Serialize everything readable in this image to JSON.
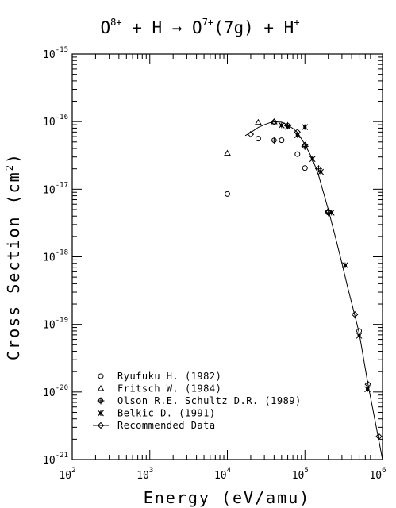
{
  "chart_data": {
    "type": "scatter",
    "title": {
      "part1": "O",
      "sup1": "8+",
      "part2": " + H → O",
      "sup2": "7+",
      "part3": "(7g) + H",
      "sup3": "+"
    },
    "xlabel": "Energy (eV/amu)",
    "ylabel": {
      "main": "Cross Section (cm",
      "sup": "2",
      "close": ")"
    },
    "x_scale": "log",
    "y_scale": "log",
    "xlim": [
      100,
      1000000
    ],
    "ylim": [
      1e-21,
      1e-15
    ],
    "x_ticks": [
      {
        "value": 100,
        "base": "10",
        "exp": "2"
      },
      {
        "value": 1000,
        "base": "10",
        "exp": "3"
      },
      {
        "value": 10000,
        "base": "10",
        "exp": "4"
      },
      {
        "value": 100000,
        "base": "10",
        "exp": "5"
      },
      {
        "value": 1000000,
        "base": "10",
        "exp": "6"
      }
    ],
    "y_ticks": [
      {
        "value": 1e-21,
        "base": "10",
        "exp": "-21"
      },
      {
        "value": 1e-20,
        "base": "10",
        "exp": "-20"
      },
      {
        "value": 1e-19,
        "base": "10",
        "exp": "-19"
      },
      {
        "value": 1e-18,
        "base": "10",
        "exp": "-18"
      },
      {
        "value": 1e-17,
        "base": "10",
        "exp": "-17"
      },
      {
        "value": 1e-16,
        "base": "10",
        "exp": "-16"
      },
      {
        "value": 1e-15,
        "base": "10",
        "exp": "-15"
      }
    ],
    "grid": false,
    "legend_position": "bottom-left",
    "series": [
      {
        "name": "Ryufuku H. (1982)",
        "marker": "circle",
        "points": [
          [
            10000,
            8.5e-18
          ],
          [
            25000,
            5.6e-17
          ],
          [
            50000,
            5.3e-17
          ],
          [
            80000,
            3.3e-17
          ],
          [
            100000,
            2.05e-17
          ],
          [
            200000,
            4.6e-18
          ],
          [
            500000,
            8e-20
          ]
        ]
      },
      {
        "name": "Fritsch W. (1984)",
        "marker": "triangle",
        "points": [
          [
            10000,
            3.4e-17
          ],
          [
            25000,
            9.7e-17
          ],
          [
            40000,
            9.9e-17
          ]
        ]
      },
      {
        "name": "Olson R.E. Schultz D.R. (1989)",
        "marker": "plus-circle",
        "points": [
          [
            40000,
            5.3e-17
          ],
          [
            60000,
            8.7e-17
          ],
          [
            100000,
            4.3e-17
          ],
          [
            150000,
            2e-17
          ],
          [
            200000,
            4.5e-18
          ]
        ]
      },
      {
        "name": "Belkic D. (1991)",
        "marker": "star",
        "points": [
          [
            50000,
            8.8e-17
          ],
          [
            60000,
            8.4e-17
          ],
          [
            80000,
            6.3e-17
          ],
          [
            100000,
            8.3e-17
          ],
          [
            125000,
            2.8e-17
          ],
          [
            160000,
            1.8e-17
          ],
          [
            220000,
            4.5e-18
          ],
          [
            330000,
            7.5e-19
          ],
          [
            500000,
            6.8e-20
          ],
          [
            640000,
            1.1e-20
          ]
        ]
      },
      {
        "name": "Recommended Data",
        "marker": "diamond-line",
        "points": [
          [
            20000,
            6.5e-17
          ],
          [
            40000,
            9.9e-17
          ],
          [
            80000,
            7e-17
          ],
          [
            100000,
            4.5e-17
          ],
          [
            200000,
            4.7e-18
          ],
          [
            440000,
            1.4e-19
          ],
          [
            650000,
            1.3e-20
          ],
          [
            900000,
            2.2e-21
          ]
        ],
        "curve": [
          [
            17000,
            6.2e-17
          ],
          [
            20000,
            6.9e-17
          ],
          [
            25000,
            8.2e-17
          ],
          [
            30000,
            9e-17
          ],
          [
            35000,
            9.6e-17
          ],
          [
            40000,
            9.9e-17
          ],
          [
            50000,
            9.8e-17
          ],
          [
            60000,
            8.9e-17
          ],
          [
            70000,
            7.9e-17
          ],
          [
            80000,
            6.9e-17
          ],
          [
            100000,
            4.6e-17
          ],
          [
            125000,
            2.8e-17
          ],
          [
            150000,
            1.6e-17
          ],
          [
            200000,
            5e-18
          ],
          [
            250000,
            1.85e-18
          ],
          [
            300000,
            8e-19
          ],
          [
            350000,
            3.8e-19
          ],
          [
            440000,
            1.35e-19
          ],
          [
            500000,
            7.5e-20
          ],
          [
            650000,
            1.3e-20
          ],
          [
            800000,
            3.8e-21
          ],
          [
            1000000,
            1e-21
          ]
        ]
      }
    ]
  }
}
